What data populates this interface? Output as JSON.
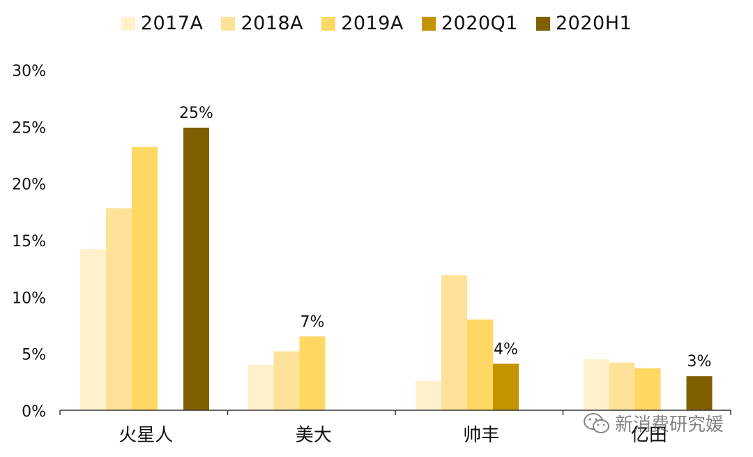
{
  "chart_data": {
    "type": "bar",
    "categories": [
      "火星人",
      "美大",
      "帅丰",
      "亿田"
    ],
    "series": [
      {
        "name": "2017A",
        "color": "#FFF1CC",
        "values": [
          14.2,
          4.0,
          2.6,
          4.5
        ]
      },
      {
        "name": "2018A",
        "color": "#FFE299",
        "values": [
          17.8,
          5.2,
          11.9,
          4.2
        ]
      },
      {
        "name": "2019A",
        "color": "#FFD763",
        "values": [
          23.2,
          6.5,
          8.0,
          3.7
        ]
      },
      {
        "name": "2020Q1",
        "color": "#C49400",
        "values": [
          null,
          null,
          4.1,
          null
        ]
      },
      {
        "name": "2020H1",
        "color": "#7F5F00",
        "values": [
          24.9,
          null,
          null,
          3.0
        ]
      }
    ],
    "data_labels": [
      {
        "category": "火星人",
        "series": "2020H1",
        "value": 24.9,
        "text": "25%"
      },
      {
        "category": "美大",
        "series": "2019A",
        "value": 6.5,
        "text": "7%"
      },
      {
        "category": "帅丰",
        "series": "2020Q1",
        "value": 4.1,
        "text": "4%"
      },
      {
        "category": "亿田",
        "series": "2020H1",
        "value": 3.0,
        "text": "3%"
      }
    ],
    "yticks": [
      "0%",
      "5%",
      "10%",
      "15%",
      "20%",
      "25%",
      "30%"
    ],
    "ylim": [
      0,
      30
    ],
    "legend_position": "top",
    "grid": false
  },
  "watermark": {
    "text": "新消费研究媛",
    "icon": "wechat-icon"
  }
}
